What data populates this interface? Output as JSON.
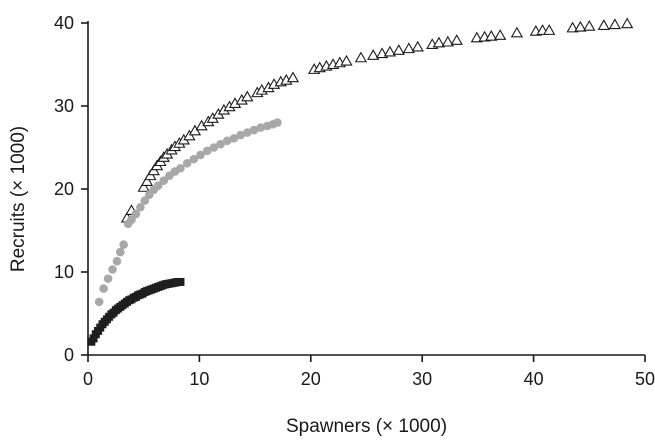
{
  "chart_data": {
    "type": "scatter",
    "title": "",
    "xlabel": "Spawners (× 1000)",
    "ylabel": "Recruits (× 1000)",
    "xlim": [
      0,
      50
    ],
    "ylim": [
      0,
      40
    ],
    "x_ticks": [
      0,
      10,
      20,
      30,
      40,
      50
    ],
    "y_ticks": [
      0,
      10,
      20,
      30,
      40
    ],
    "x_tick_labels": [
      "0",
      "10",
      "20",
      "30",
      "40",
      "50"
    ],
    "y_tick_labels": [
      "0",
      "10",
      "20",
      "30",
      "40"
    ],
    "grid": false,
    "legend": "none",
    "series": [
      {
        "marker": "open-triangle",
        "color": "#1a1a1a",
        "points": [
          [
            3.5,
            16.5
          ],
          [
            3.9,
            17.4
          ],
          [
            5.0,
            20.2
          ],
          [
            5.3,
            20.9
          ],
          [
            5.6,
            21.6
          ],
          [
            5.9,
            22.2
          ],
          [
            6.2,
            22.8
          ],
          [
            6.5,
            23.3
          ],
          [
            6.8,
            23.8
          ],
          [
            7.1,
            24.2
          ],
          [
            7.5,
            24.7
          ],
          [
            7.8,
            25.1
          ],
          [
            8.2,
            25.5
          ],
          [
            8.6,
            25.9
          ],
          [
            9.1,
            26.4
          ],
          [
            9.6,
            27.0
          ],
          [
            10.2,
            27.6
          ],
          [
            10.8,
            28.1
          ],
          [
            11.2,
            28.5
          ],
          [
            11.7,
            29.0
          ],
          [
            12.2,
            29.5
          ],
          [
            12.7,
            29.9
          ],
          [
            13.2,
            30.3
          ],
          [
            13.8,
            30.7
          ],
          [
            14.3,
            31.1
          ],
          [
            15.2,
            31.6
          ],
          [
            15.6,
            31.9
          ],
          [
            16.2,
            32.2
          ],
          [
            16.7,
            32.6
          ],
          [
            17.3,
            32.9
          ],
          [
            17.8,
            33.1
          ],
          [
            18.4,
            33.4
          ],
          [
            20.3,
            34.4
          ],
          [
            20.8,
            34.6
          ],
          [
            21.4,
            34.8
          ],
          [
            22.0,
            35.0
          ],
          [
            22.6,
            35.2
          ],
          [
            23.2,
            35.4
          ],
          [
            24.5,
            35.8
          ],
          [
            25.6,
            36.1
          ],
          [
            26.4,
            36.3
          ],
          [
            27.1,
            36.5
          ],
          [
            27.9,
            36.7
          ],
          [
            28.8,
            36.9
          ],
          [
            29.6,
            37.1
          ],
          [
            30.9,
            37.4
          ],
          [
            31.5,
            37.6
          ],
          [
            32.3,
            37.7
          ],
          [
            33.1,
            37.9
          ],
          [
            34.9,
            38.2
          ],
          [
            35.6,
            38.3
          ],
          [
            36.2,
            38.4
          ],
          [
            37.0,
            38.5
          ],
          [
            38.5,
            38.8
          ],
          [
            40.2,
            39.0
          ],
          [
            40.8,
            39.1
          ],
          [
            41.4,
            39.1
          ],
          [
            43.5,
            39.4
          ],
          [
            44.2,
            39.5
          ],
          [
            45.0,
            39.6
          ],
          [
            46.3,
            39.7
          ],
          [
            47.3,
            39.8
          ],
          [
            48.4,
            39.9
          ]
        ]
      },
      {
        "marker": "filled-circle",
        "color": "#a8a8a8",
        "points": [
          [
            1.0,
            6.4
          ],
          [
            1.4,
            8.0
          ],
          [
            1.8,
            9.2
          ],
          [
            2.2,
            10.3
          ],
          [
            2.6,
            11.3
          ],
          [
            2.9,
            12.4
          ],
          [
            3.2,
            13.3
          ],
          [
            3.6,
            15.8
          ],
          [
            3.9,
            16.3
          ],
          [
            4.3,
            17.0
          ],
          [
            4.7,
            17.8
          ],
          [
            5.1,
            18.6
          ],
          [
            5.5,
            19.3
          ],
          [
            5.9,
            19.9
          ],
          [
            6.3,
            20.4
          ],
          [
            6.8,
            21.0
          ],
          [
            7.3,
            21.6
          ],
          [
            7.8,
            22.1
          ],
          [
            8.3,
            22.5
          ],
          [
            8.9,
            23.1
          ],
          [
            9.5,
            23.6
          ],
          [
            10.1,
            24.1
          ],
          [
            10.7,
            24.6
          ],
          [
            11.3,
            25.0
          ],
          [
            11.9,
            25.4
          ],
          [
            12.5,
            25.8
          ],
          [
            13.1,
            26.1
          ],
          [
            13.7,
            26.5
          ],
          [
            14.3,
            26.8
          ],
          [
            14.9,
            27.1
          ],
          [
            15.5,
            27.4
          ],
          [
            16.1,
            27.6
          ],
          [
            16.6,
            27.8
          ],
          [
            17.0,
            28.0
          ]
        ]
      },
      {
        "marker": "filled-square",
        "color": "#1e1e1e",
        "points": [
          [
            0.3,
            1.6
          ],
          [
            0.5,
            2.0
          ],
          [
            0.7,
            2.5
          ],
          [
            0.9,
            2.9
          ],
          [
            1.1,
            3.3
          ],
          [
            1.3,
            3.7
          ],
          [
            1.5,
            4.0
          ],
          [
            1.7,
            4.3
          ],
          [
            1.9,
            4.6
          ],
          [
            2.1,
            4.9
          ],
          [
            2.3,
            5.1
          ],
          [
            2.5,
            5.4
          ],
          [
            2.7,
            5.6
          ],
          [
            2.9,
            5.8
          ],
          [
            3.1,
            6.0
          ],
          [
            3.3,
            6.2
          ],
          [
            3.5,
            6.4
          ],
          [
            3.7,
            6.6
          ],
          [
            3.9,
            6.7
          ],
          [
            4.1,
            6.9
          ],
          [
            4.3,
            7.0
          ],
          [
            4.5,
            7.2
          ],
          [
            4.7,
            7.3
          ],
          [
            4.9,
            7.4
          ],
          [
            5.1,
            7.6
          ],
          [
            5.3,
            7.7
          ],
          [
            5.5,
            7.8
          ],
          [
            5.7,
            7.9
          ],
          [
            5.9,
            8.0
          ],
          [
            6.1,
            8.1
          ],
          [
            6.3,
            8.2
          ],
          [
            6.5,
            8.3
          ],
          [
            6.7,
            8.4
          ],
          [
            6.9,
            8.5
          ],
          [
            7.1,
            8.55
          ],
          [
            7.3,
            8.6
          ],
          [
            7.5,
            8.65
          ],
          [
            7.7,
            8.7
          ],
          [
            7.9,
            8.75
          ],
          [
            8.1,
            8.8
          ],
          [
            8.3,
            8.8
          ]
        ]
      }
    ]
  }
}
